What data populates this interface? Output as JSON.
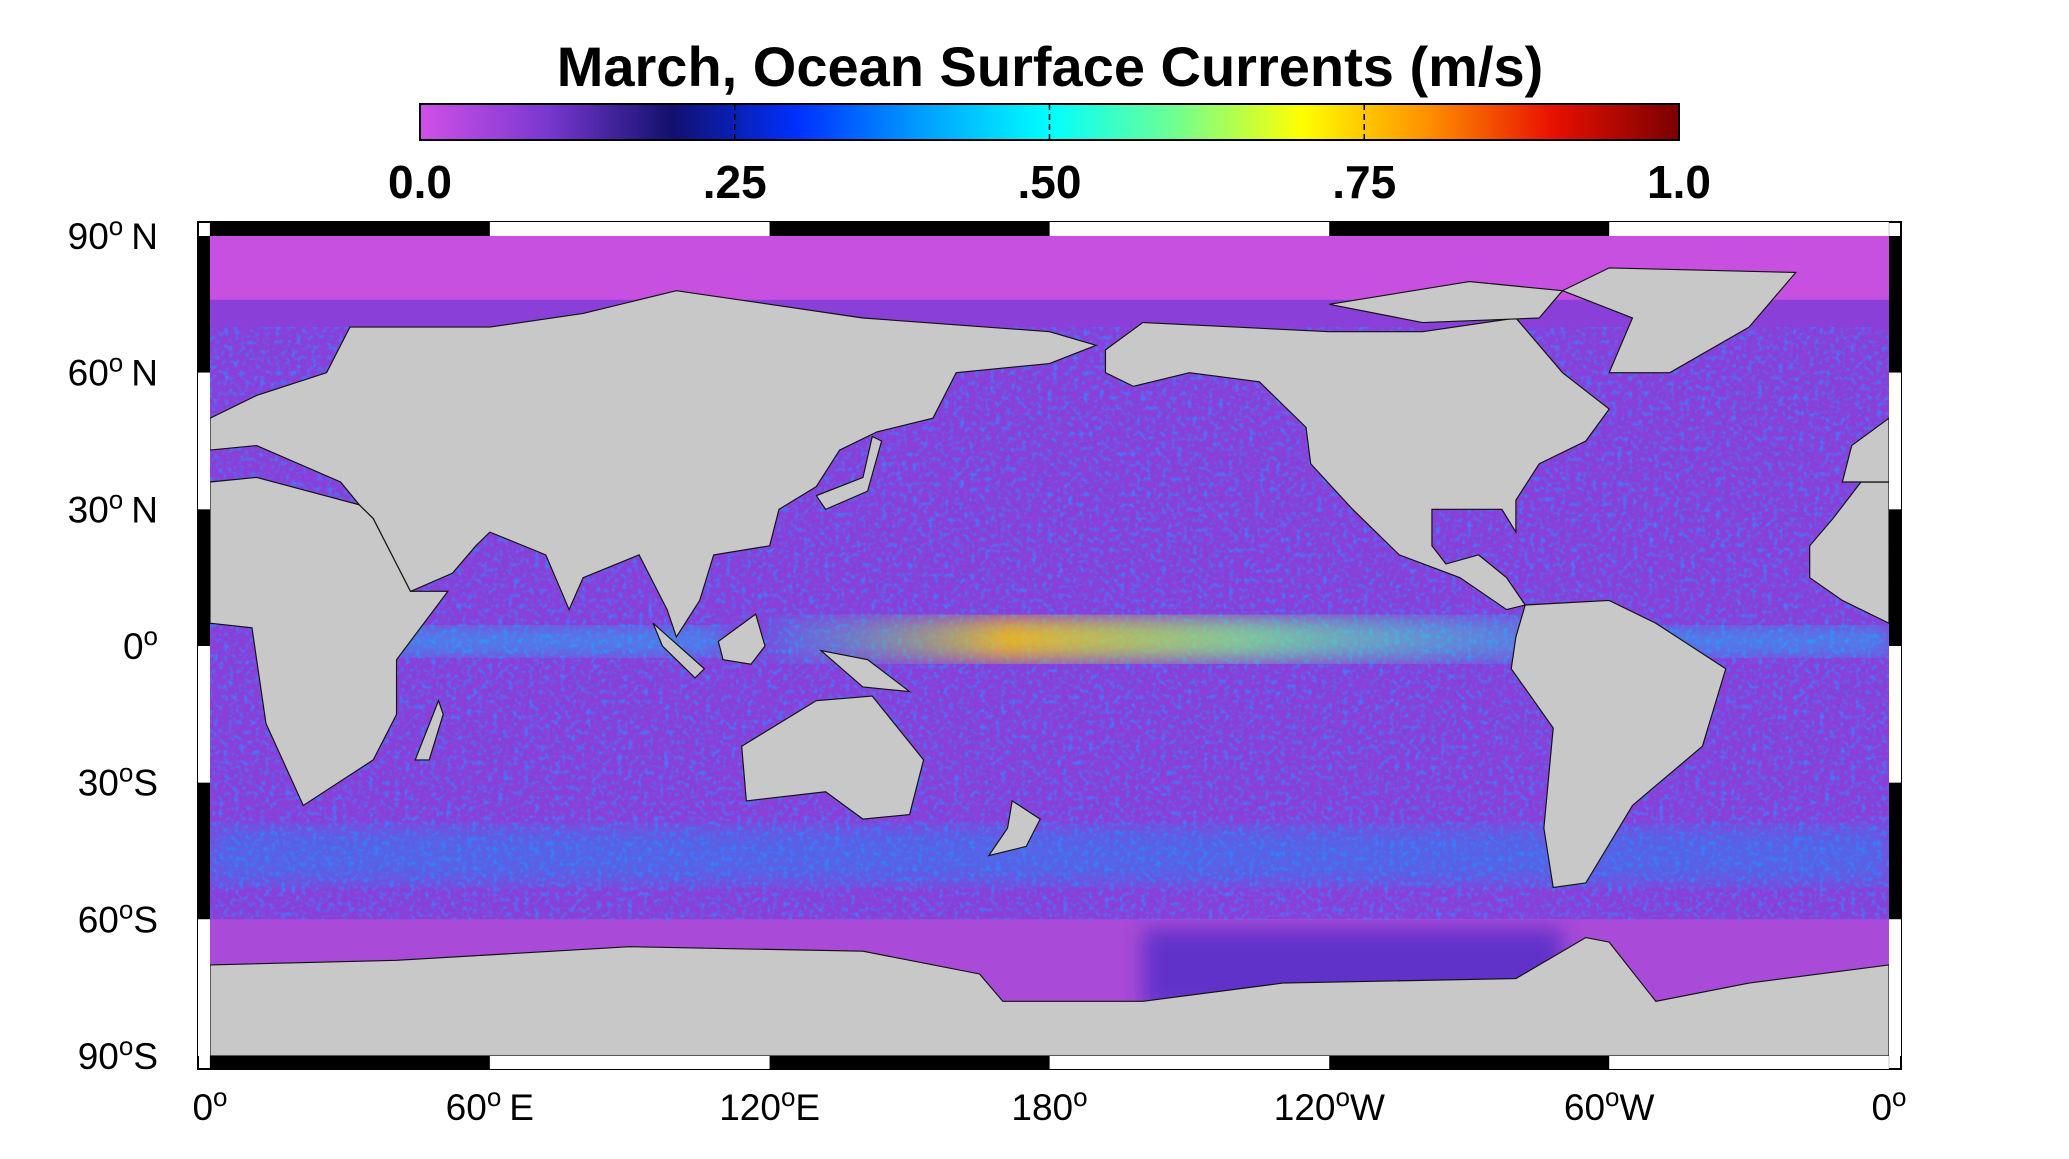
{
  "map": {
    "title": "March, Ocean Surface Currents (m/s)",
    "colorbar": {
      "range": [
        0,
        1
      ],
      "colormap": [
        "#d050e8",
        "#7a38d0",
        "#12106e",
        "#0030ff",
        "#00a0ff",
        "#00ffff",
        "#70ff90",
        "#ffff00",
        "#ff9000",
        "#e81000",
        "#7a0000"
      ],
      "ticks": [
        {
          "value": 0,
          "label": "0.0"
        },
        {
          "value": 0.25,
          "label": ".25"
        },
        {
          "value": 0.5,
          "label": ".50"
        },
        {
          "value": 0.75,
          "label": ".75"
        },
        {
          "value": 1,
          "label": "1.0"
        }
      ]
    },
    "lat_ticks": [
      {
        "value": 90,
        "label": "90",
        "degree": "o",
        "hemisphere": "N"
      },
      {
        "value": 60,
        "label": "60",
        "degree": "o",
        "hemisphere": "N"
      },
      {
        "value": 30,
        "label": "30",
        "degree": "o",
        "hemisphere": "N"
      },
      {
        "value": 0,
        "label": "0",
        "degree": "o"
      },
      {
        "value": -30,
        "label": "30",
        "degree": "o",
        "hemisphere": "S"
      },
      {
        "value": -60,
        "label": "60",
        "degree": "o",
        "hemisphere": "S"
      },
      {
        "value": -90,
        "label": "90",
        "degree": "o",
        "hemisphere": "S"
      }
    ],
    "lon_ticks": [
      {
        "value": 0,
        "label": "0",
        "degree": "o"
      },
      {
        "value": 60,
        "label": "60",
        "degree": "o",
        "hemisphere": "E"
      },
      {
        "value": 120,
        "label": "120",
        "degree": "o",
        "hemisphere": "E"
      },
      {
        "value": 180,
        "label": "180",
        "degree": "o"
      },
      {
        "value": 240,
        "label": "120",
        "degree": "o",
        "hemisphere": "W"
      },
      {
        "value": 300,
        "label": "60",
        "degree": "o",
        "hemisphere": "W"
      },
      {
        "value": 360,
        "label": "0",
        "degree": "o"
      }
    ]
  }
}
